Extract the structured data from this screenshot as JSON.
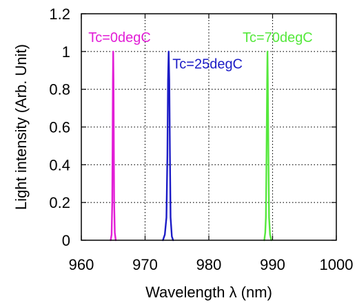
{
  "chart_data": {
    "type": "line",
    "title": "",
    "xlabel": "Wavelength  λ (nm)",
    "ylabel": "Light intensity (Arb. Unit)",
    "xlim": [
      960,
      1000
    ],
    "ylim": [
      0,
      1.2
    ],
    "x_ticks": [
      960,
      970,
      980,
      990,
      1000
    ],
    "y_ticks": [
      0,
      0.2,
      0.4,
      0.6,
      0.8,
      1,
      1.2
    ],
    "x_tick_labels": [
      "960",
      "970",
      "980",
      "990",
      "1000"
    ],
    "y_tick_labels": [
      "0",
      "0.2",
      "0.4",
      "0.6",
      "0.8",
      "1",
      "1.2"
    ],
    "grid": true,
    "legend": "none",
    "series": [
      {
        "name": "Tc=0degC",
        "color": "#e21ed6",
        "points": [
          [
            964.6,
            0
          ],
          [
            964.75,
            0.03
          ],
          [
            964.85,
            0.2
          ],
          [
            964.9,
            0.5
          ],
          [
            964.95,
            0.85
          ],
          [
            965.0,
            1.0
          ],
          [
            965.05,
            0.85
          ],
          [
            965.1,
            0.5
          ],
          [
            965.15,
            0.2
          ],
          [
            965.25,
            0.04
          ],
          [
            965.4,
            0
          ]
        ]
      },
      {
        "name": "Tc=25degC",
        "color": "#1c1cc6",
        "points": [
          [
            972.8,
            0
          ],
          [
            973.1,
            0.03
          ],
          [
            973.35,
            0.12
          ],
          [
            973.5,
            0.45
          ],
          [
            973.6,
            0.85
          ],
          [
            973.7,
            1.0
          ],
          [
            973.8,
            0.85
          ],
          [
            973.9,
            0.45
          ],
          [
            974.0,
            0.12
          ],
          [
            974.2,
            0.02
          ],
          [
            974.4,
            0
          ]
        ]
      },
      {
        "name": "Tc=70degC",
        "color": "#55e83c",
        "points": [
          [
            988.7,
            0
          ],
          [
            988.85,
            0.04
          ],
          [
            988.95,
            0.12
          ],
          [
            989.05,
            0.45
          ],
          [
            989.15,
            0.85
          ],
          [
            989.2,
            1.0
          ],
          [
            989.25,
            0.85
          ],
          [
            989.35,
            0.45
          ],
          [
            989.45,
            0.12
          ],
          [
            989.6,
            0.03
          ],
          [
            989.8,
            0
          ]
        ]
      }
    ],
    "annotations": [
      {
        "text": "Tc=0degC",
        "x": 966.0,
        "y": 1.05,
        "color": "#e21ed6"
      },
      {
        "text": "Tc=25degC",
        "x": 979.8,
        "y": 0.91,
        "color": "#1c1cc6"
      },
      {
        "text": "Tc=70degC",
        "x": 990.8,
        "y": 1.05,
        "color": "#55e83c"
      }
    ]
  }
}
